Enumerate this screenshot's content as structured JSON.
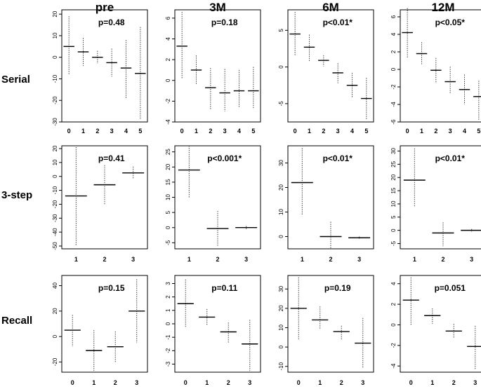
{
  "columns": [
    "pre",
    "3M",
    "6M",
    "12M"
  ],
  "rows": [
    "Serial",
    "3-step",
    "Recall"
  ],
  "colors": {
    "median": "#000000",
    "whisker": "#444444",
    "frame": "#000000"
  },
  "chart_data": [
    {
      "row": "Serial",
      "col": "pre",
      "type": "line",
      "pvalue": "p=0.48",
      "xticks": [
        "0",
        "1",
        "2",
        "3",
        "4",
        "5"
      ],
      "ylim": [
        -30,
        22
      ],
      "yticks": [
        20,
        10,
        0,
        -10,
        -20,
        -30
      ],
      "medians": [
        5,
        2.5,
        0,
        -2.5,
        -5,
        -7.5
      ],
      "low": [
        -8,
        -4,
        -3,
        -9,
        -19,
        -29
      ],
      "high": [
        19,
        9,
        3,
        4,
        8,
        14
      ]
    },
    {
      "row": "Serial",
      "col": "3M",
      "type": "line",
      "pvalue": "p=0.18",
      "xticks": [
        "0",
        "1",
        "2",
        "3",
        "4",
        "5"
      ],
      "ylim": [
        -4,
        6.8
      ],
      "yticks": [
        6,
        4,
        2,
        0,
        -2,
        -4
      ],
      "medians": [
        3.3,
        1,
        -0.7,
        -1.2,
        -1,
        -1
      ],
      "low": [
        0.2,
        -0.4,
        -2.8,
        -3,
        -2.6,
        -2.7
      ],
      "high": [
        6.6,
        2.4,
        1.2,
        1.1,
        1,
        1.3
      ]
    },
    {
      "row": "Serial",
      "col": "6M",
      "type": "line",
      "pvalue": "p<0.01*",
      "xticks": [
        "0",
        "1",
        "2",
        "3",
        "4",
        "5"
      ],
      "ylim": [
        -7.5,
        7.8
      ],
      "yticks": [
        5,
        0,
        -5
      ],
      "medians": [
        4.5,
        2.7,
        0.9,
        -0.8,
        -2.5,
        -4.3
      ],
      "low": [
        1.5,
        0.8,
        0.1,
        -2.2,
        -4.2,
        -7.2
      ],
      "high": [
        7.5,
        4.4,
        1.6,
        0.5,
        -0.8,
        -1.5
      ]
    },
    {
      "row": "Serial",
      "col": "12M",
      "type": "line",
      "pvalue": "p<0.05*",
      "xticks": [
        "0",
        "1",
        "2",
        "3",
        "4",
        "5"
      ],
      "ylim": [
        -6,
        6.8
      ],
      "yticks": [
        6,
        4,
        2,
        0,
        -2,
        -4,
        -6
      ],
      "medians": [
        4.2,
        1.8,
        -0.1,
        -1.4,
        -2.3,
        -3.1
      ],
      "low": [
        1.3,
        0.6,
        -1.6,
        -2.8,
        -4,
        -5.8
      ],
      "high": [
        7,
        3.1,
        1.3,
        0.3,
        -0.6,
        -1.3
      ]
    },
    {
      "row": "3-step",
      "col": "pre",
      "type": "line",
      "pvalue": "p=0.41",
      "xticks": [
        "1",
        "2",
        "3"
      ],
      "ylim": [
        -52,
        22
      ],
      "yticks": [
        20,
        10,
        0,
        -10,
        -20,
        -30,
        -40,
        -50
      ],
      "medians": [
        -14,
        -6,
        2.5
      ],
      "low": [
        -50,
        -20,
        -2
      ],
      "high": [
        21,
        8,
        7
      ]
    },
    {
      "row": "3-step",
      "col": "3M",
      "type": "line",
      "pvalue": "p<0.001*",
      "xticks": [
        "1",
        "2",
        "3"
      ],
      "ylim": [
        -7,
        27
      ],
      "yticks": [
        25,
        20,
        15,
        10,
        5,
        0,
        -5
      ],
      "medians": [
        19,
        -0.3,
        0
      ],
      "low": [
        10,
        -6,
        -0.5
      ],
      "high": [
        27,
        5.5,
        0.5
      ]
    },
    {
      "row": "3-step",
      "col": "6M",
      "type": "line",
      "pvalue": "p<0.01*",
      "xticks": [
        "1",
        "2",
        "3"
      ],
      "ylim": [
        -5,
        37
      ],
      "yticks": [
        30,
        20,
        10,
        0
      ],
      "medians": [
        22,
        0,
        -0.5
      ],
      "low": [
        9,
        -5,
        -1
      ],
      "high": [
        36,
        6,
        0
      ]
    },
    {
      "row": "3-step",
      "col": "12M",
      "type": "line",
      "pvalue": "p<0.01*",
      "xticks": [
        "1",
        "2",
        "3"
      ],
      "ylim": [
        -7,
        32
      ],
      "yticks": [
        30,
        25,
        20,
        15,
        10,
        5,
        0,
        -5
      ],
      "medians": [
        19,
        -1,
        0
      ],
      "low": [
        9,
        -6,
        -0.5
      ],
      "high": [
        31,
        3,
        0.5
      ]
    },
    {
      "row": "Recall",
      "col": "pre",
      "type": "line",
      "pvalue": "p=0.15",
      "xticks": [
        "0",
        "1",
        "2",
        "3"
      ],
      "ylim": [
        -28,
        48
      ],
      "yticks": [
        40,
        20,
        0,
        -20
      ],
      "medians": [
        5,
        -11,
        -8,
        20
      ],
      "low": [
        -8,
        -27,
        -20,
        -5
      ],
      "high": [
        17,
        5,
        4,
        45
      ]
    },
    {
      "row": "Recall",
      "col": "3M",
      "type": "line",
      "pvalue": "p=0.11",
      "xticks": [
        "0",
        "1",
        "2",
        "3"
      ],
      "ylim": [
        -3.6,
        3.6
      ],
      "yticks": [
        3,
        2,
        1,
        0,
        -1,
        -2,
        -3
      ],
      "medians": [
        1.5,
        0.5,
        -0.6,
        -1.5
      ],
      "low": [
        -0.3,
        -0.1,
        -1.4,
        -3.5
      ],
      "high": [
        3.3,
        1.1,
        0.1,
        0.3
      ]
    },
    {
      "row": "Recall",
      "col": "6M",
      "type": "line",
      "pvalue": "p=0.19",
      "xticks": [
        "0",
        "1",
        "2",
        "3"
      ],
      "ylim": [
        -13,
        37
      ],
      "yticks": [
        30,
        20,
        10,
        0,
        -10
      ],
      "medians": [
        20,
        14,
        8,
        2
      ],
      "low": [
        4,
        9,
        4,
        -11
      ],
      "high": [
        36,
        21,
        11,
        15
      ]
    },
    {
      "row": "Recall",
      "col": "12M",
      "type": "line",
      "pvalue": "p=0.051",
      "xticks": [
        "0",
        "1",
        "2",
        "3"
      ],
      "ylim": [
        -4.6,
        4.8
      ],
      "yticks": [
        4,
        2,
        0,
        -2,
        -4
      ],
      "medians": [
        2.4,
        0.9,
        -0.6,
        -2.1
      ],
      "low": [
        0,
        0.1,
        -1.3,
        -4.3
      ],
      "high": [
        4.6,
        1.6,
        0.1,
        -0.1
      ]
    }
  ]
}
